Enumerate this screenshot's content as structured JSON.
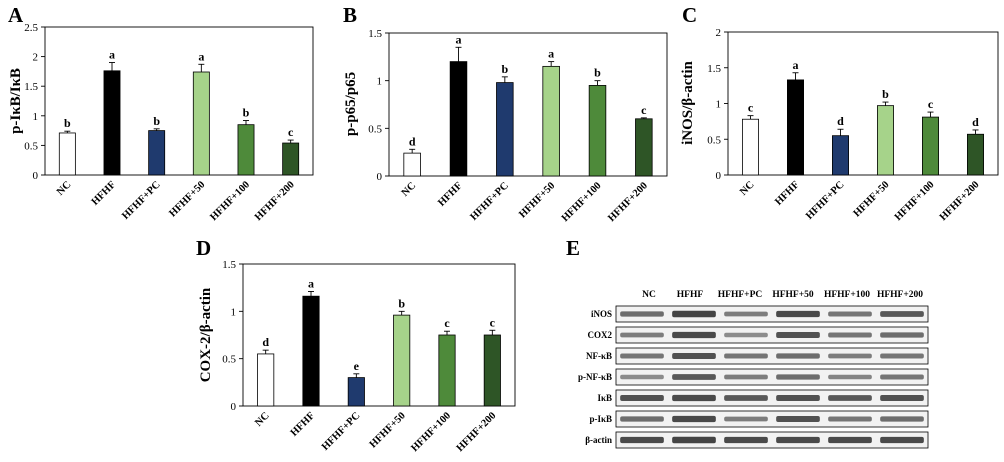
{
  "figure": {
    "bar_colors": [
      "#ffffff",
      "#000000",
      "#1f3a6e",
      "#a6d38a",
      "#4e8a3a",
      "#2e5526"
    ],
    "band_color": "#222222"
  },
  "chart_data": [
    {
      "panel": "A",
      "type": "bar",
      "title": "",
      "xlabel": "",
      "ylabel": "p-IκB/IκB",
      "categories": [
        "NC",
        "HFHF",
        "HFHF+PC",
        "HFHF+50",
        "HFHF+100",
        "HFHF+200"
      ],
      "values": [
        0.71,
        1.76,
        0.75,
        1.74,
        0.85,
        0.54
      ],
      "errors": [
        0.03,
        0.14,
        0.03,
        0.13,
        0.07,
        0.05
      ],
      "labels": [
        "b",
        "a",
        "b",
        "a",
        "b",
        "c"
      ],
      "ylim": [
        0,
        2.5
      ],
      "ticks": [
        "0",
        "0.5",
        "1",
        "1.5",
        "2",
        "2.5"
      ],
      "grid": false
    },
    {
      "panel": "B",
      "type": "bar",
      "title": "",
      "xlabel": "",
      "ylabel": "p-p65/p65",
      "categories": [
        "NC",
        "HFHF",
        "HFHF+PC",
        "HFHF+50",
        "HFHF+100",
        "HFHF+200"
      ],
      "values": [
        0.24,
        1.2,
        0.98,
        1.15,
        0.95,
        0.6
      ],
      "errors": [
        0.04,
        0.15,
        0.06,
        0.05,
        0.05,
        0.01
      ],
      "labels": [
        "d",
        "a",
        "b",
        "a",
        "b",
        "c"
      ],
      "ylim": [
        0,
        1.5
      ],
      "ticks": [
        "0",
        "0.5",
        "1",
        "1.5"
      ],
      "grid": false
    },
    {
      "panel": "C",
      "type": "bar",
      "title": "",
      "xlabel": "",
      "ylabel": "iNOS/β-actin",
      "categories": [
        "NC",
        "HFHF",
        "HFHF+PC",
        "HFHF+50",
        "HFHF+100",
        "HFHF+200"
      ],
      "values": [
        0.78,
        1.33,
        0.55,
        0.97,
        0.81,
        0.57
      ],
      "errors": [
        0.05,
        0.1,
        0.09,
        0.05,
        0.07,
        0.06
      ],
      "labels": [
        "c",
        "a",
        "d",
        "b",
        "c",
        "d"
      ],
      "ylim": [
        0,
        2
      ],
      "ticks": [
        "0",
        "0.5",
        "1",
        "1.5",
        "2"
      ],
      "grid": false
    },
    {
      "panel": "D",
      "type": "bar",
      "title": "",
      "xlabel": "",
      "ylabel": "COX-2/β-actin",
      "categories": [
        "NC",
        "HFHF",
        "HFHF+PC",
        "HFHF+50",
        "HFHF+100",
        "HFHF+200"
      ],
      "values": [
        0.55,
        1.16,
        0.3,
        0.96,
        0.75,
        0.75
      ],
      "errors": [
        0.04,
        0.05,
        0.04,
        0.04,
        0.04,
        0.05
      ],
      "labels": [
        "d",
        "a",
        "e",
        "b",
        "c",
        "c"
      ],
      "ylim": [
        0,
        1.5
      ],
      "ticks": [
        "0",
        "0.5",
        "1",
        "1.5"
      ],
      "grid": false
    }
  ],
  "blot": {
    "panel": "E",
    "lanes": [
      "NC",
      "HFHF",
      "HFHF+PC",
      "HFHF+50",
      "HFHF+100",
      "HFHF+200"
    ],
    "rows": [
      "iNOS",
      "COX2",
      "NF-κB",
      "p-NF-κB",
      "IκB",
      "p-IκB",
      "β-actin"
    ],
    "intensity": [
      [
        0.55,
        0.85,
        0.45,
        0.8,
        0.5,
        0.7
      ],
      [
        0.45,
        0.8,
        0.35,
        0.75,
        0.5,
        0.55
      ],
      [
        0.5,
        0.75,
        0.5,
        0.55,
        0.45,
        0.5
      ],
      [
        0.35,
        0.7,
        0.45,
        0.55,
        0.4,
        0.5
      ],
      [
        0.75,
        0.8,
        0.7,
        0.75,
        0.7,
        0.75
      ],
      [
        0.55,
        0.8,
        0.45,
        0.75,
        0.5,
        0.55
      ],
      [
        0.8,
        0.85,
        0.8,
        0.8,
        0.8,
        0.8
      ]
    ]
  }
}
